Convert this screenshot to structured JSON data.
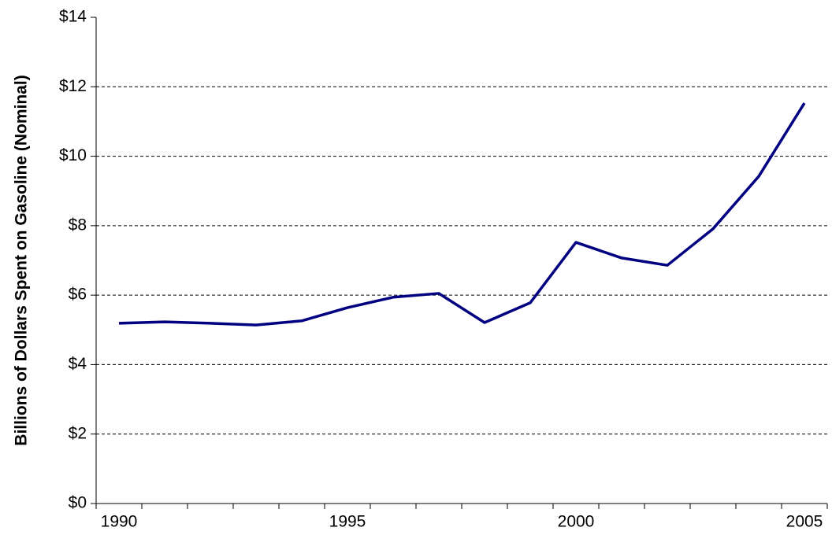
{
  "chart_data": {
    "type": "line",
    "y_label": "Billions of Dollars Spent on Gasoline (Nominal)",
    "categories": [
      "1990",
      null,
      null,
      null,
      null,
      "1995",
      null,
      null,
      null,
      null,
      "2000",
      null,
      null,
      null,
      null,
      "2005"
    ],
    "series": [
      {
        "name": null,
        "color": "#000080",
        "values": [
          5.19,
          5.23,
          5.19,
          5.14,
          5.26,
          5.64,
          5.94,
          6.05,
          5.21,
          5.78,
          7.52,
          7.07,
          6.86,
          7.91,
          9.42,
          11.53
        ]
      }
    ],
    "ylim": [
      0,
      14
    ],
    "yticks": [
      {
        "value": 0,
        "label": "$0"
      },
      {
        "value": 2,
        "label": "$2"
      },
      {
        "value": 4,
        "label": "$4"
      },
      {
        "value": 6,
        "label": "$6"
      },
      {
        "value": 8,
        "label": "$8"
      },
      {
        "value": 10,
        "label": "$10"
      },
      {
        "value": 12,
        "label": "$12"
      },
      {
        "value": 14,
        "label": "$14"
      }
    ],
    "grid": true
  }
}
